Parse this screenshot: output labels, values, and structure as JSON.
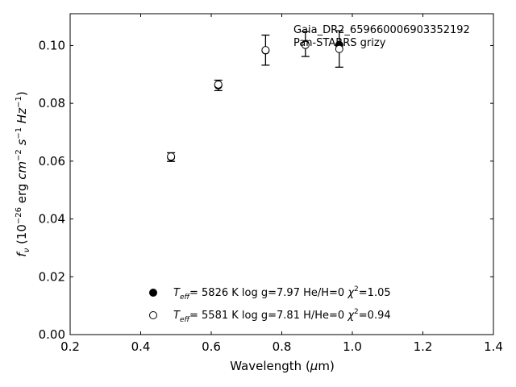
{
  "chart_data": {
    "type": "scatter",
    "title": "",
    "annotation": [
      "Gaia_DR2_659660006903352192",
      "Pan-STARRS grizy"
    ],
    "xlabel": "Wavelength (μm)",
    "ylabel": "fν (10⁻²⁶ erg cm⁻² s⁻¹ Hz⁻¹)",
    "xlim": [
      0.2,
      1.4
    ],
    "ylim": [
      0.0,
      0.111
    ],
    "xticks": [
      "0.2",
      "0.4",
      "0.6",
      "0.8",
      "1.0",
      "1.2",
      "1.4"
    ],
    "yticks": [
      "0.00",
      "0.02",
      "0.04",
      "0.06",
      "0.08",
      "0.10"
    ],
    "grid": false,
    "legend_position": "bottom-center",
    "observed": {
      "x": [
        0.486,
        0.62,
        0.754,
        0.867,
        0.963
      ],
      "y": [
        0.0614,
        0.0862,
        0.0984,
        0.1005,
        0.0988
      ],
      "yerr": [
        0.0015,
        0.0018,
        0.0052,
        0.0043,
        0.0063
      ]
    },
    "series": [
      {
        "name": "Teff= 5826 K log g=7.97 He/H=0 χ²=1.05",
        "marker": "filled",
        "x": [
          0.486,
          0.62,
          0.754,
          0.867,
          0.963
        ],
        "y": [
          0.0614,
          0.0862,
          0.0983,
          0.1005,
          0.1002
        ]
      },
      {
        "name": "Teff= 5581 K log g=7.81 H/He=0 χ²=0.94",
        "marker": "open",
        "x": [
          0.486,
          0.62,
          0.754,
          0.867,
          0.963
        ],
        "y": [
          0.0616,
          0.0865,
          0.0984,
          0.1002,
          0.0988
        ]
      }
    ],
    "legend": [
      {
        "teff": "5826 K",
        "logg": "log g=7.97",
        "comp": "He/H=0",
        "chi": "=1.05"
      },
      {
        "teff": "5581 K",
        "logg": "log g=7.81",
        "comp": "H/He=0",
        "chi": "=0.94"
      }
    ]
  }
}
